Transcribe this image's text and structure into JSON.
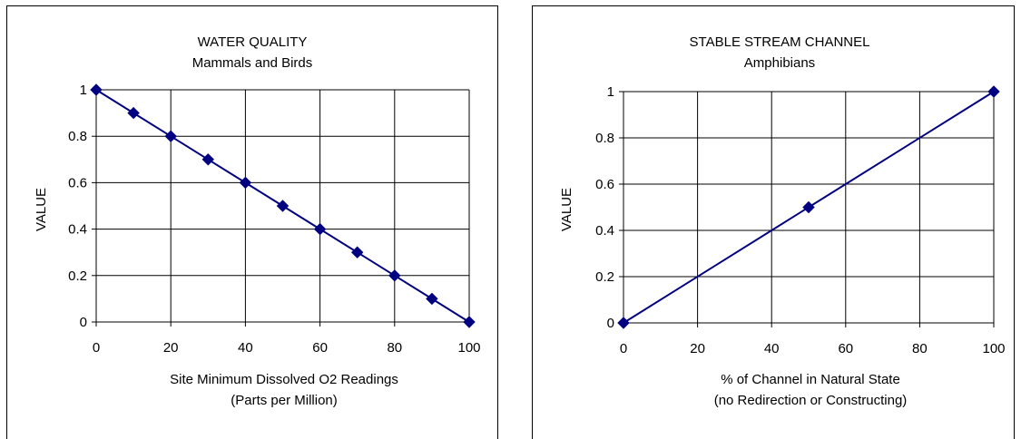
{
  "chart_data": [
    {
      "type": "line",
      "title": "WATER QUALITY",
      "subtitle": "Mammals and Birds",
      "xlabel": "Site Minimum Dissolved O2 Readings",
      "xlabel2": "(Parts per Million)",
      "ylabel": "VALUE",
      "xlim": [
        0,
        100
      ],
      "ylim": [
        0,
        1
      ],
      "xticks": [
        "0",
        "20",
        "40",
        "60",
        "80",
        "100"
      ],
      "yticks": [
        "0",
        "0.2",
        "0.4",
        "0.6",
        "0.8",
        "1"
      ],
      "grid": true,
      "series": [
        {
          "x": [
            0,
            10,
            20,
            30,
            40,
            50,
            60,
            70,
            80,
            90,
            100
          ],
          "y": [
            1,
            0.9,
            0.8,
            0.7,
            0.6,
            0.5,
            0.4,
            0.3,
            0.2,
            0.1,
            0
          ],
          "color": "#000080",
          "marker": "diamond"
        }
      ]
    },
    {
      "type": "line",
      "title": "STABLE STREAM CHANNEL",
      "subtitle": "Amphibians",
      "xlabel": "% of Channel in Natural State",
      "xlabel2": "(no Redirection or Constructing)",
      "ylabel": "VALUE",
      "xlim": [
        0,
        100
      ],
      "ylim": [
        0,
        1
      ],
      "xticks": [
        "0",
        "20",
        "40",
        "60",
        "80",
        "100"
      ],
      "yticks": [
        "0",
        "0.2",
        "0.4",
        "0.6",
        "0.8",
        "1"
      ],
      "grid": true,
      "series": [
        {
          "x": [
            0,
            50,
            100
          ],
          "y": [
            0,
            0.5,
            1
          ],
          "color": "#000080",
          "marker": "diamond"
        }
      ]
    }
  ]
}
